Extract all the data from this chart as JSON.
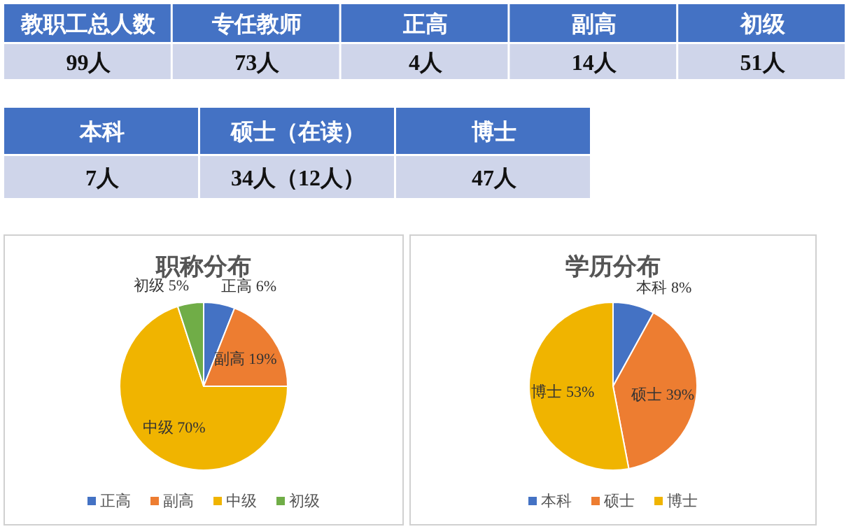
{
  "chart_data": [
    {
      "type": "other",
      "categories": [
        "教职工总人数",
        "专任教师",
        "正高",
        "副高",
        "初级"
      ],
      "annotations": [
        "99人",
        "73人",
        "4人",
        "14人",
        "51人"
      ]
    },
    {
      "type": "other",
      "categories": [
        "本科",
        "硕士（在读）",
        "博士"
      ],
      "annotations": [
        "7人",
        "34人（12人）",
        "47人"
      ]
    },
    {
      "type": "pie",
      "title": "职称分布",
      "categories": [
        "正高",
        "副高",
        "中级",
        "初级"
      ],
      "values": [
        6,
        19,
        70,
        5
      ],
      "colors": [
        "#4472c4",
        "#ed7d31",
        "#f0b400",
        "#70ad47"
      ],
      "value_labels": [
        "正高 6%",
        "副高 19%",
        "中级 70%",
        "初级 5%"
      ],
      "legend": "bottom"
    },
    {
      "type": "pie",
      "title": "学历分布",
      "categories": [
        "本科",
        "硕士",
        "博士"
      ],
      "values": [
        8,
        39,
        53
      ],
      "colors": [
        "#4472c4",
        "#ed7d31",
        "#f0b400"
      ],
      "value_labels": [
        "本科 8%",
        "硕士 39%",
        "博士 53%"
      ],
      "legend": "bottom"
    }
  ]
}
